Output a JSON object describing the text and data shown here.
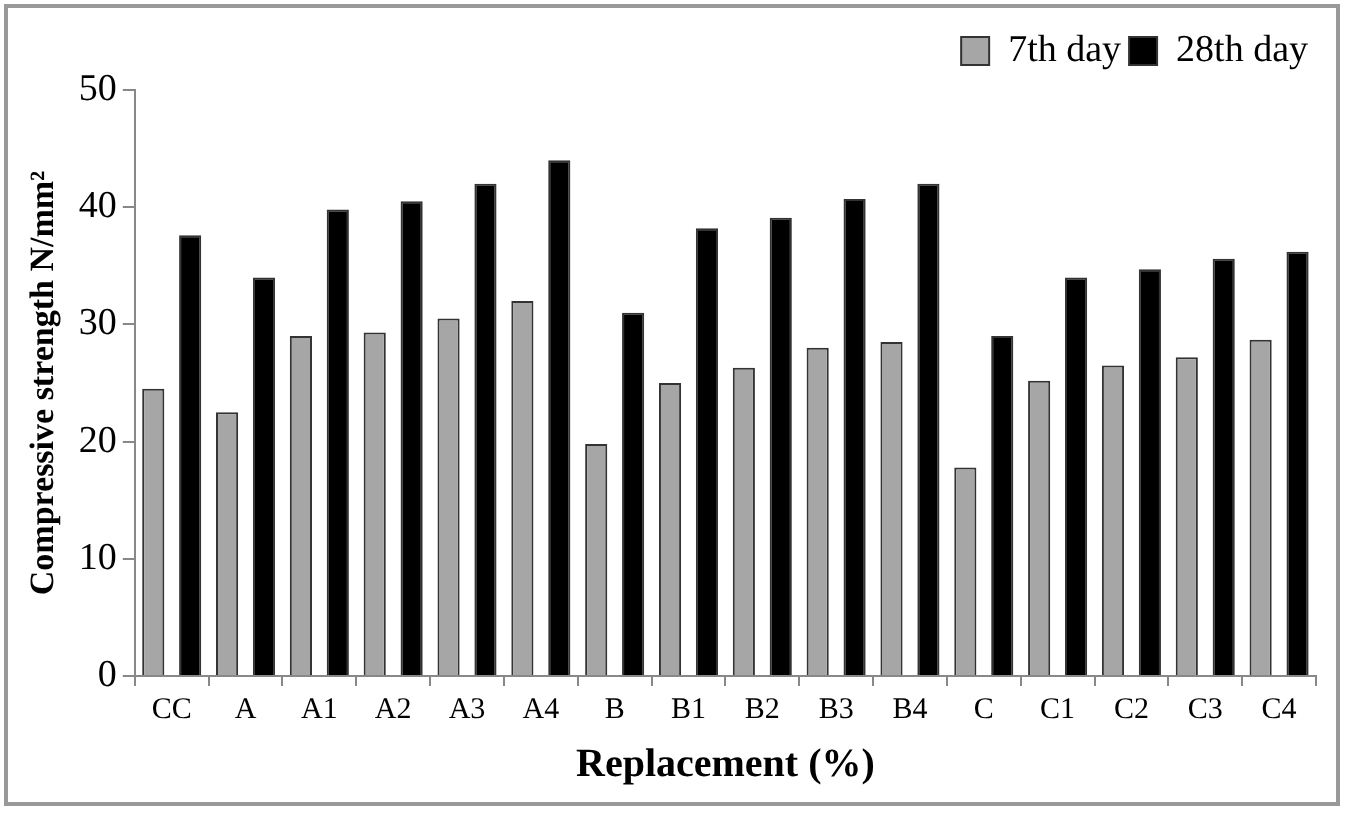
{
  "chart_data": {
    "type": "bar",
    "xlabel": "Replacement (%)",
    "ylabel": "Compressive strength N/mm²",
    "categories": [
      "CC",
      "A",
      "A1",
      "A2",
      "A3",
      "A4",
      "B",
      "B1",
      "B2",
      "B3",
      "B4",
      "C",
      "C1",
      "C2",
      "C3",
      "C4"
    ],
    "series": [
      {
        "name": "7th day",
        "color": "#a6a6a6",
        "values": [
          24.5,
          22.5,
          29,
          29.3,
          30.5,
          32,
          19.8,
          25,
          26.3,
          28,
          28.5,
          17.8,
          25.2,
          26.5,
          27.2,
          28.7
        ]
      },
      {
        "name": "28th day",
        "color": "#000000",
        "values": [
          37.6,
          34,
          39.8,
          40.5,
          42,
          44,
          31,
          38.2,
          39.1,
          40.7,
          42,
          29,
          34,
          34.7,
          35.6,
          36.2
        ]
      }
    ],
    "ylim": [
      0,
      50
    ],
    "yticks": [
      0,
      10,
      20,
      30,
      40,
      50
    ],
    "grid": false,
    "legend": "top right"
  }
}
